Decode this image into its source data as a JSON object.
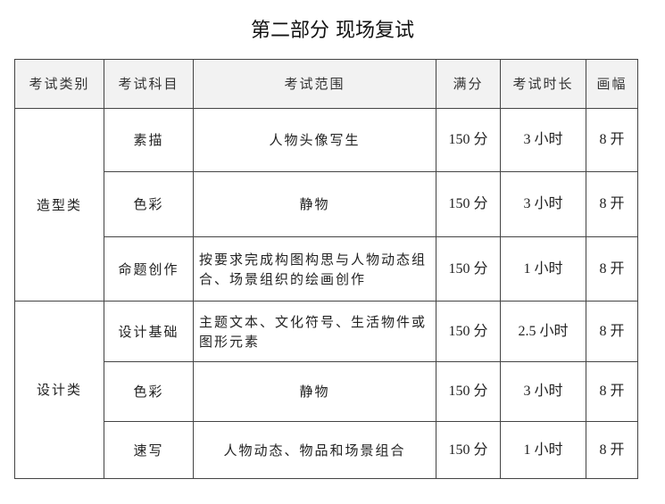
{
  "title": "第二部分 现场复试",
  "headers": [
    "考试类别",
    "考试科目",
    "考试范围",
    "满分",
    "考试时长",
    "画幅"
  ],
  "groups": [
    {
      "category": "造型类",
      "rows": [
        {
          "subject": "素描",
          "scope": "人物头像写生",
          "score": "150 分",
          "duration": "3 小时",
          "size": "8 开"
        },
        {
          "subject": "色彩",
          "scope": "静物",
          "score": "150 分",
          "duration": "3 小时",
          "size": "8 开"
        },
        {
          "subject": "命题创作",
          "scope": "按要求完成构图构思与人物动态组合、场景组织的绘画创作",
          "score": "150 分",
          "duration": "1 小时",
          "size": "8 开"
        }
      ]
    },
    {
      "category": "设计类",
      "rows": [
        {
          "subject": "设计基础",
          "scope": "主题文本、文化符号、生活物件或图形元素",
          "score": "150 分",
          "duration": "2.5 小时",
          "size": "8 开"
        },
        {
          "subject": "色彩",
          "scope": "静物",
          "score": "150 分",
          "duration": "3 小时",
          "size": "8 开"
        },
        {
          "subject": "速写",
          "scope": "人物动态、物品和场景组合",
          "score": "150 分",
          "duration": "1 小时",
          "size": "8 开"
        }
      ]
    }
  ]
}
